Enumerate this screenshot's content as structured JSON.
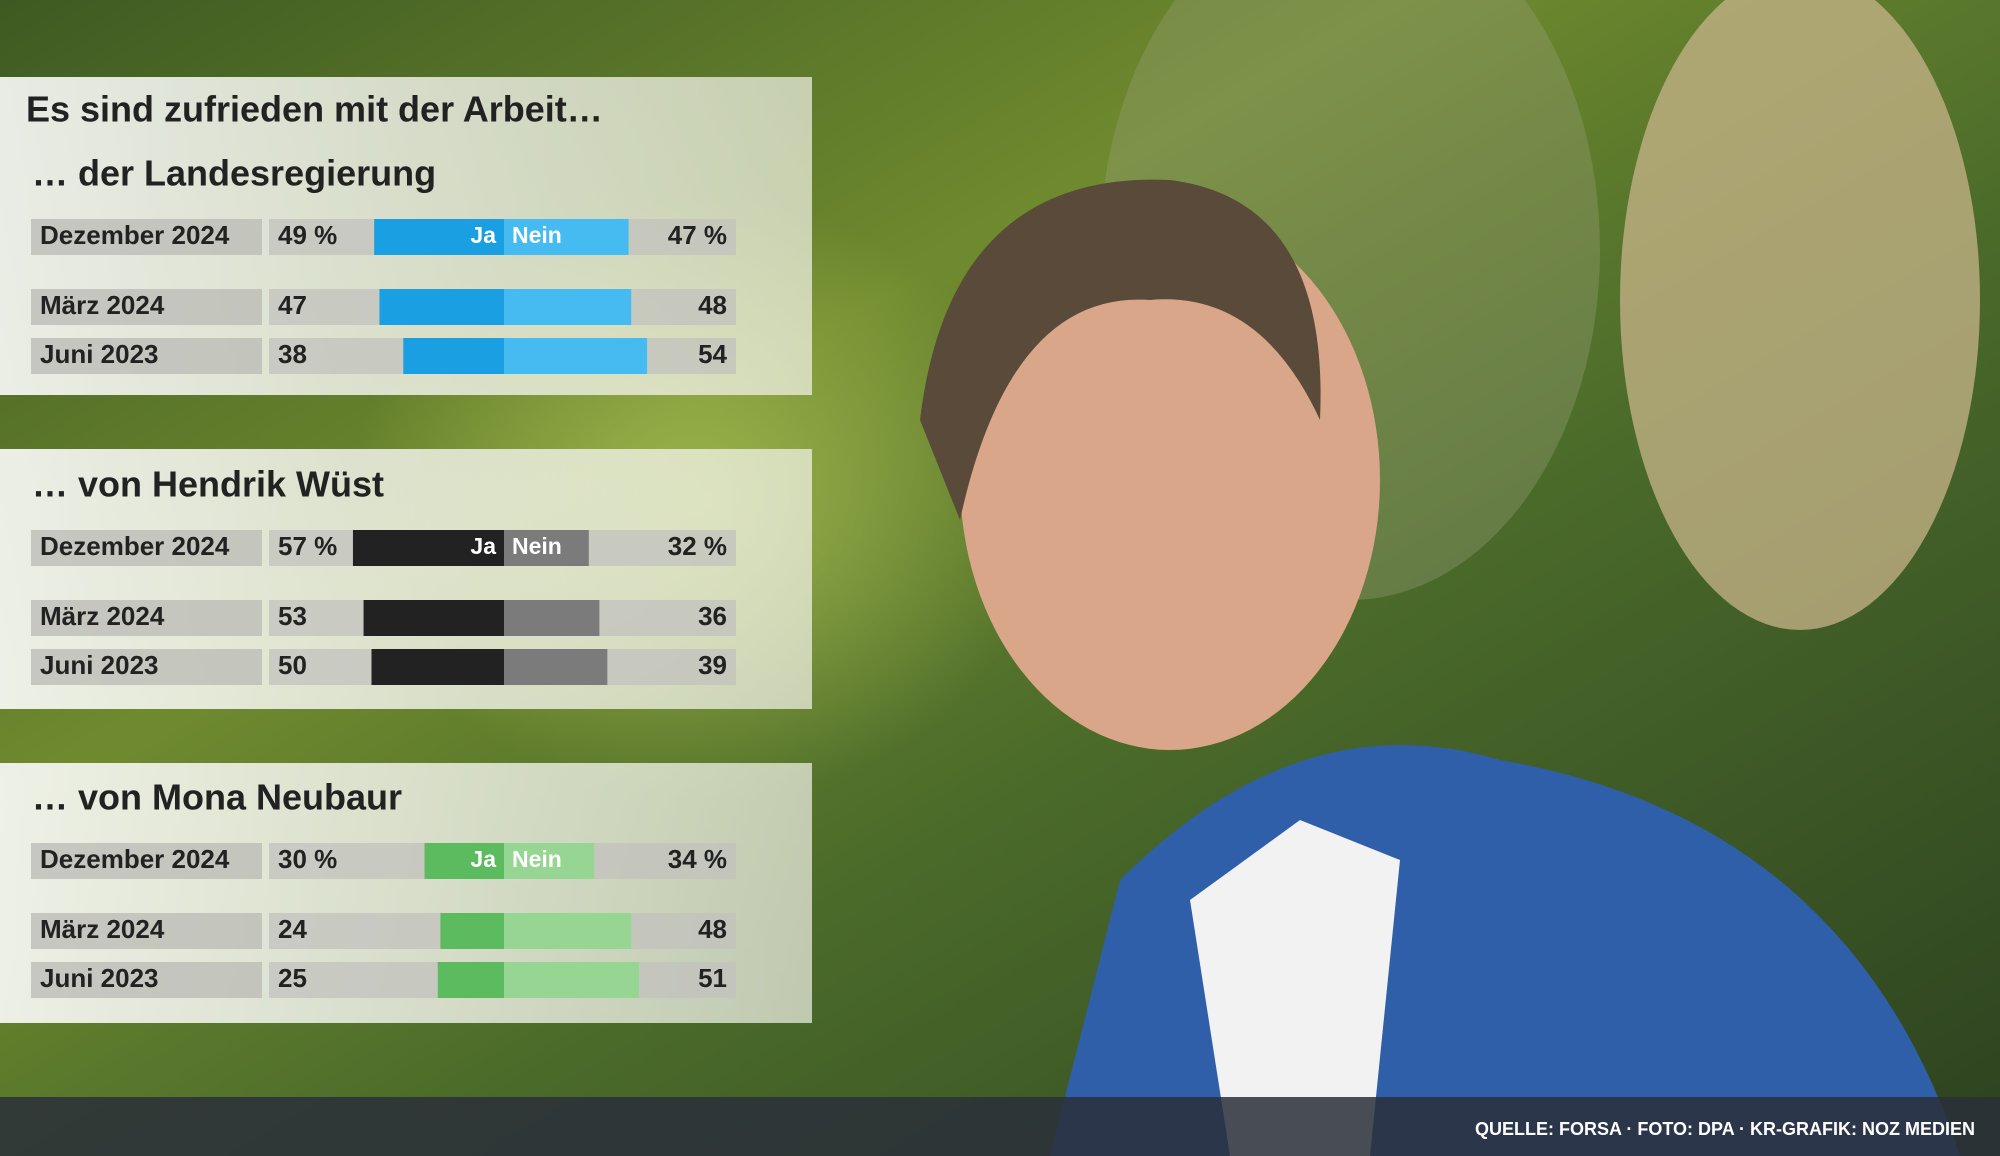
{
  "title": "Es sind zufrieden mit der Arbeit…",
  "source": "QUELLE: FORSA · FOTO: DPA · KR-GRAFIK: NOZ MEDIEN",
  "chart_data": [
    {
      "type": "diverging_bar",
      "title": "… der Landesregierung",
      "categories": [
        "Dezember 2024",
        "März 2024",
        "Juni 2023"
      ],
      "series": [
        {
          "name": "Ja",
          "color": "#1a9fe2",
          "values": [
            49,
            47,
            38
          ],
          "value_labels": [
            "49 %",
            "47",
            "38"
          ]
        },
        {
          "name": "Nein",
          "color": "#45bbf2",
          "values": [
            47,
            48,
            54
          ],
          "value_labels": [
            "47 %",
            "48",
            "54"
          ]
        }
      ]
    },
    {
      "type": "diverging_bar",
      "title": "… von Hendrik Wüst",
      "categories": [
        "Dezember 2024",
        "März 2024",
        "Juni 2023"
      ],
      "series": [
        {
          "name": "Ja",
          "color": "#222222",
          "values": [
            57,
            53,
            50
          ],
          "value_labels": [
            "57 %",
            "53",
            "50"
          ]
        },
        {
          "name": "Nein",
          "color": "#7b7b7b",
          "values": [
            32,
            36,
            39
          ],
          "value_labels": [
            "32 %",
            "36",
            "39"
          ]
        }
      ]
    },
    {
      "type": "diverging_bar",
      "title": "… von Mona Neubaur",
      "categories": [
        "Dezember 2024",
        "März 2024",
        "Juni 2023"
      ],
      "series": [
        {
          "name": "Ja",
          "color": "#5cbb5e",
          "values": [
            30,
            24,
            25
          ],
          "value_labels": [
            "30 %",
            "24",
            "25"
          ]
        },
        {
          "name": "Nein",
          "color": "#97d592",
          "values": [
            34,
            48,
            51
          ],
          "value_labels": [
            "34 %",
            "48",
            "51"
          ]
        }
      ]
    }
  ]
}
